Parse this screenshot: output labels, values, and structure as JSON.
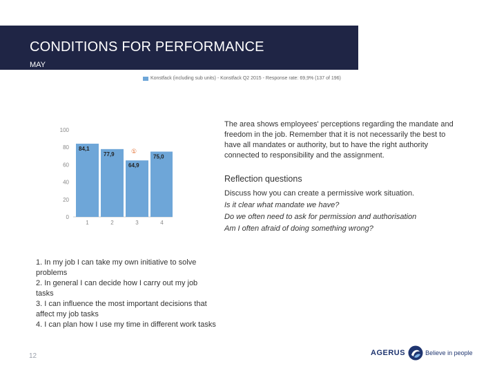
{
  "header": {
    "title": "CONDITIONS FOR PERFORMANCE",
    "subtitle": "MAY"
  },
  "chart_data": {
    "type": "bar",
    "legend": "Konstfack (including sub units) - Konstfack Q2 2015 - Response rate: 69,9% (137 of 196)",
    "categories": [
      "1",
      "2",
      "3",
      "4"
    ],
    "values": [
      84.1,
      77.9,
      64.9,
      75.0
    ],
    "value_labels": [
      "84,1",
      "77,9",
      "64,9",
      "75,0"
    ],
    "y_ticks": [
      "0",
      "20",
      "40",
      "60",
      "80",
      "100"
    ],
    "ylim": [
      0,
      100
    ],
    "annotation": "①",
    "bar_color": "#6ea6d8",
    "title": "",
    "xlabel": "",
    "ylabel": ""
  },
  "description": "The area shows employees' perceptions regarding the mandate and freedom in the job. Remember that it is not necessarily the best to have all mandates or authority, but to have the right authority connected to responsibility and the assignment.",
  "reflection": {
    "title": "Reflection questions",
    "lines": [
      "Discuss how you can create a permissive work situation.",
      "Is it clear what mandate we have?",
      "Do we often need to ask for permission and authorisation",
      "Am I often afraid of doing something wrong?"
    ]
  },
  "items": [
    "1. In my job I can take my own initiative to solve problems",
    "2. In general I can decide how I carry out my job tasks",
    "3. I can influence the most important decisions that affect my job tasks",
    "4. I can plan how I use my time in different work tasks"
  ],
  "page_number": "12",
  "logo": {
    "brand": "AGERUS",
    "slogan": "Believe in people",
    "color": "#1f3570"
  }
}
